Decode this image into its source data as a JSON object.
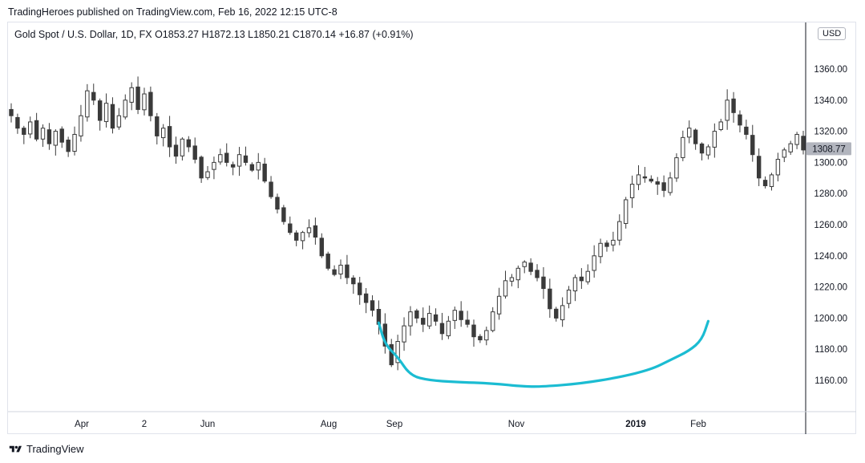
{
  "header": {
    "caption": "TradingHeroes published on TradingView.com, Feb 16, 2022 12:15 UTC-8"
  },
  "legend": {
    "text": "Gold Spot / U.S. Dollar, 1D, FX  O1853.27  H1872.13  L1850.21  C1870.14  +16.87 (+0.91%)"
  },
  "currency_label": "USD",
  "footer": {
    "brand": "TradingView",
    "icon": "tradingview-logo-icon"
  },
  "colors": {
    "candle": "#3a3a3a",
    "annotation": "#1bbcd2",
    "price_tag_bg": "#b2b5be",
    "axis_line": "#131722"
  },
  "chart_data": {
    "type": "candlestick",
    "symbol": "Gold Spot / U.S. Dollar",
    "interval": "1D",
    "ylim": [
      1145,
      1370
    ],
    "y_ticks": [
      1160,
      1180,
      1200,
      1220,
      1240,
      1260,
      1280,
      1300,
      1320,
      1340,
      1360
    ],
    "x_ticks": [
      {
        "label": "Apr",
        "bold": false
      },
      {
        "label": "2",
        "bold": false
      },
      {
        "label": "Jun",
        "bold": false
      },
      {
        "label": "Aug",
        "bold": false
      },
      {
        "label": "Sep",
        "bold": false
      },
      {
        "label": "Nov",
        "bold": false
      },
      {
        "label": "2019",
        "bold": true
      },
      {
        "label": "Feb",
        "bold": false
      }
    ],
    "last_price_tag": "1308.77",
    "close_path": [
      1330,
      1322,
      1318,
      1326,
      1315,
      1322,
      1312,
      1320,
      1313,
      1307,
      1318,
      1330,
      1346,
      1340,
      1327,
      1338,
      1322,
      1330,
      1340,
      1348,
      1334,
      1344,
      1330,
      1317,
      1322,
      1310,
      1304,
      1315,
      1310,
      1302,
      1290,
      1294,
      1300,
      1305,
      1300,
      1297,
      1305,
      1300,
      1295,
      1300,
      1288,
      1278,
      1270,
      1262,
      1255,
      1250,
      1255,
      1258,
      1252,
      1240,
      1232,
      1228,
      1234,
      1226,
      1222,
      1215,
      1210,
      1205,
      1196,
      1182,
      1170,
      1185,
      1195,
      1204,
      1200,
      1196,
      1203,
      1198,
      1190,
      1198,
      1205,
      1199,
      1196,
      1188,
      1186,
      1192,
      1204,
      1214,
      1224,
      1226,
      1232,
      1236,
      1230,
      1226,
      1219,
      1206,
      1200,
      1208,
      1218,
      1226,
      1224,
      1230,
      1240,
      1248,
      1246,
      1250,
      1262,
      1276,
      1286,
      1292,
      1290,
      1288,
      1286,
      1282,
      1290,
      1303,
      1316,
      1322,
      1312,
      1306,
      1310,
      1320,
      1326,
      1340,
      1332,
      1324,
      1318,
      1305,
      1290,
      1285,
      1292,
      1302,
      1308,
      1312,
      1318,
      1308
    ],
    "annotation": {
      "type": "freehand-curve",
      "points": [
        [
          1,
          1197
        ],
        [
          2,
          1183
        ],
        [
          4,
          1175
        ],
        [
          6,
          1163
        ],
        [
          9,
          1160
        ],
        [
          13,
          1159
        ],
        [
          19,
          1158
        ],
        [
          24,
          1156
        ],
        [
          27,
          1156
        ],
        [
          33,
          1158
        ],
        [
          39,
          1162
        ],
        [
          44,
          1167
        ],
        [
          47,
          1173
        ],
        [
          50,
          1179
        ],
        [
          52,
          1186
        ],
        [
          53,
          1198
        ]
      ],
      "x_anchor": "close_path index offset 57"
    }
  }
}
